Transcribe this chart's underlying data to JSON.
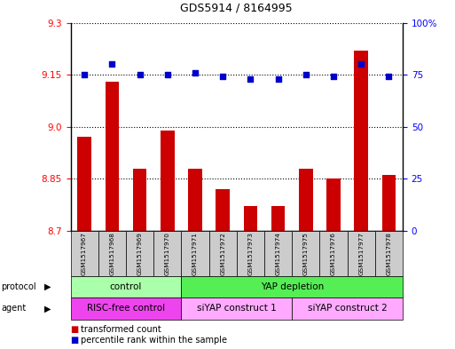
{
  "title": "GDS5914 / 8164995",
  "samples": [
    "GSM1517967",
    "GSM1517968",
    "GSM1517969",
    "GSM1517970",
    "GSM1517971",
    "GSM1517972",
    "GSM1517973",
    "GSM1517974",
    "GSM1517975",
    "GSM1517976",
    "GSM1517977",
    "GSM1517978"
  ],
  "bar_values": [
    8.97,
    9.13,
    8.88,
    8.99,
    8.88,
    8.82,
    8.77,
    8.77,
    8.88,
    8.85,
    9.22,
    8.86
  ],
  "percentile_values": [
    75,
    80,
    75,
    75,
    76,
    74,
    73,
    73,
    75,
    74,
    80,
    74
  ],
  "ylim_left": [
    8.7,
    9.3
  ],
  "ylim_right": [
    0,
    100
  ],
  "yticks_left": [
    8.7,
    8.85,
    9.0,
    9.15,
    9.3
  ],
  "yticks_right": [
    0,
    25,
    50,
    75,
    100
  ],
  "bar_color": "#cc0000",
  "dot_color": "#0000cc",
  "protocol_groups": [
    {
      "label": "control",
      "start": 0,
      "end": 3,
      "color": "#aaffaa"
    },
    {
      "label": "YAP depletion",
      "start": 4,
      "end": 11,
      "color": "#55ee55"
    }
  ],
  "agent_groups": [
    {
      "label": "RISC-free control",
      "start": 0,
      "end": 3,
      "color": "#ee44ee"
    },
    {
      "label": "siYAP construct 1",
      "start": 4,
      "end": 7,
      "color": "#ffaaff"
    },
    {
      "label": "siYAP construct 2",
      "start": 8,
      "end": 11,
      "color": "#ffaaff"
    }
  ],
  "legend_items": [
    {
      "label": "transformed count",
      "color": "#cc0000"
    },
    {
      "label": "percentile rank within the sample",
      "color": "#0000cc"
    }
  ],
  "bg_color": "#ffffff",
  "sample_bg_color": "#cccccc"
}
